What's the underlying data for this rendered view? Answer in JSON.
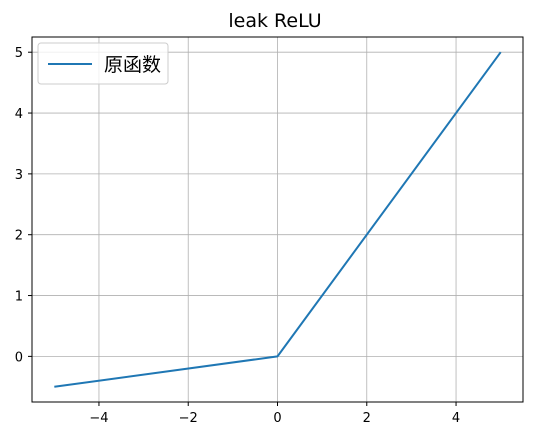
{
  "chart_data": {
    "type": "line",
    "title": "leak ReLU",
    "xlabel": "",
    "ylabel": "",
    "xlim": [
      -5.5,
      5.5
    ],
    "ylim": [
      -0.75,
      5.25
    ],
    "xticks": [
      -4,
      -2,
      0,
      2,
      4
    ],
    "xtick_labels": [
      "−4",
      "−2",
      "0",
      "2",
      "4"
    ],
    "yticks": [
      0,
      1,
      2,
      3,
      4,
      5
    ],
    "ytick_labels": [
      "0",
      "1",
      "2",
      "3",
      "4",
      "5"
    ],
    "grid": true,
    "legend_position": "top-left",
    "series": [
      {
        "name": "原函数",
        "color": "#1f77b4",
        "x": [
          -5,
          0,
          5
        ],
        "y": [
          -0.5,
          0,
          5
        ]
      }
    ]
  }
}
